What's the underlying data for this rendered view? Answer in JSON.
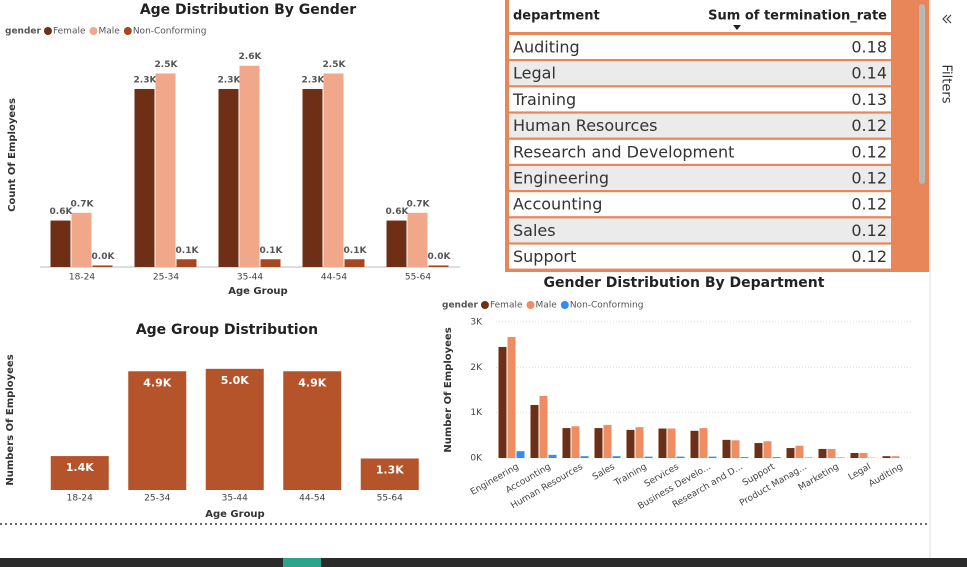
{
  "chart_data": [
    {
      "type": "bar",
      "title": "Age Distribution By Gender",
      "x_label": "Age Group",
      "y_label": "Count Of Employees",
      "legend_title": "gender",
      "categories": [
        "18-24",
        "25-34",
        "35-44",
        "44-54",
        "55-64"
      ],
      "series": [
        {
          "name": "Female",
          "color": "#6f2f17",
          "values": [
            600,
            2300,
            2300,
            2300,
            600
          ],
          "value_labels": [
            "0.6K",
            "2.3K",
            "2.3K",
            "2.3K",
            "0.6K"
          ]
        },
        {
          "name": "Male",
          "color": "#f0a78a",
          "values": [
            700,
            2500,
            2600,
            2500,
            700
          ],
          "value_labels": [
            "0.7K",
            "2.5K",
            "2.6K",
            "2.5K",
            "0.7K"
          ]
        },
        {
          "name": "Non-Conforming",
          "color": "#a5481f",
          "values": [
            20,
            100,
            100,
            100,
            20
          ],
          "value_labels": [
            "0.0K",
            "0.1K",
            "0.1K",
            "0.1K",
            "0.0K"
          ]
        }
      ],
      "ylim": [
        0,
        2700
      ]
    },
    {
      "type": "bar",
      "title": "Age Group Distribution",
      "x_label": "Age Group",
      "y_label": "Numbers Of Employees",
      "categories": [
        "18-24",
        "25-34",
        "35-44",
        "44-54",
        "55-64"
      ],
      "values": [
        1400,
        4900,
        5000,
        4900,
        1300
      ],
      "value_labels": [
        "1.4K",
        "4.9K",
        "5.0K",
        "4.9K",
        "1.3K"
      ],
      "color": "#b5532a",
      "ylim": [
        0,
        5200
      ]
    },
    {
      "type": "bar",
      "title": "Gender Distribution By Department",
      "y_label": "Number Of Employees",
      "legend_title": "gender",
      "categories": [
        "Engineering",
        "Accounting",
        "Human Resources",
        "Sales",
        "Training",
        "Services",
        "Business Develo...",
        "Research and D...",
        "Support",
        "Product Manag...",
        "Marketing",
        "Legal",
        "Auditing"
      ],
      "series": [
        {
          "name": "Female",
          "color": "#6f2f17",
          "values": [
            2450,
            1170,
            660,
            660,
            620,
            650,
            600,
            400,
            330,
            220,
            200,
            110,
            40
          ]
        },
        {
          "name": "Male",
          "color": "#ee8c64",
          "values": [
            2670,
            1370,
            700,
            730,
            680,
            650,
            660,
            390,
            370,
            270,
            200,
            110,
            40
          ]
        },
        {
          "name": "Non-Conforming",
          "color": "#2e8ff0",
          "values": [
            150,
            70,
            40,
            40,
            30,
            30,
            30,
            20,
            20,
            10,
            10,
            5,
            0
          ]
        }
      ],
      "ylim": [
        0,
        3000
      ],
      "yticks": [
        {
          "value": 0,
          "label": "0K"
        },
        {
          "value": 1000,
          "label": "1K"
        },
        {
          "value": 2000,
          "label": "2K"
        },
        {
          "value": 3000,
          "label": "3K"
        }
      ],
      "grid": true
    }
  ],
  "table": {
    "headers": [
      "department",
      "Sum of termination_rate"
    ],
    "rows": [
      [
        "Auditing",
        0.18
      ],
      [
        "Legal",
        0.14
      ],
      [
        "Training",
        0.13
      ],
      [
        "Human Resources",
        0.12
      ],
      [
        "Research and Development",
        0.12
      ],
      [
        "Engineering",
        0.12
      ],
      [
        "Accounting",
        0.12
      ],
      [
        "Sales",
        0.12
      ],
      [
        "Support",
        0.12
      ]
    ]
  },
  "filters_pane": {
    "label": "Filters"
  }
}
